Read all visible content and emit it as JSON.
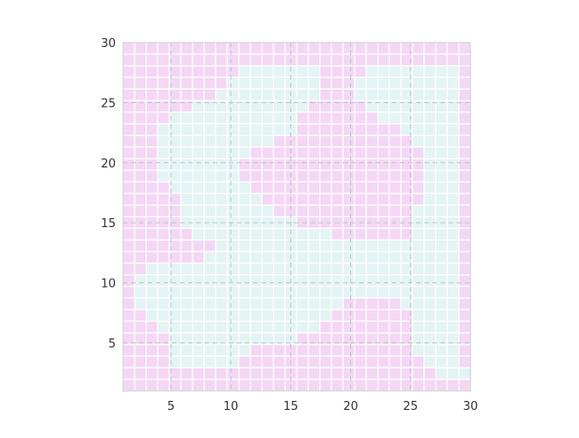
{
  "chart_data": {
    "type": "heatmap",
    "title": "",
    "xlabel": "",
    "ylabel": "",
    "xlim": [
      1,
      30
    ],
    "ylim": [
      1,
      30
    ],
    "xticks": [
      5,
      10,
      15,
      20,
      25,
      30
    ],
    "yticks": [
      5,
      10,
      15,
      20,
      25,
      30
    ],
    "grid": true,
    "colors": {
      "value_0": "#e4f3f3",
      "value_1": "#f4d7f4",
      "cell_border": "#ffffff",
      "grid_line": "#b8c8c8",
      "frame": "#cccccc"
    },
    "value_encoding": "rows listed from y=30 (top) down to y=1 (bottom); '0' = light blue, '1' = pink; each string covers x=1..30",
    "cells": [
      "111111111111111111111111111111",
      "111111111111111111111111111111",
      "111111111100000001111000000001",
      "111111111000000001110000000001",
      "111111110000000001110000000001",
      "111111000000000011111000000001",
      "111100000000000111111100000001",
      "111000000000000111111111000001",
      "111000000000011111111111100001",
      "111000000001111111111111110001",
      "111000000011111111111111110001",
      "111000000011111111111111110001",
      "111100000001111111111111110001",
      "111110000000111111111111110001",
      "111110000000011111111111100001",
      "111110000000000111111111100001",
      "111111000000000000111111100001",
      "111111110000000000000000000001",
      "111111100000000000000000000001",
      "110000000000000000000000000001",
      "100000000000000000000000000001",
      "100000000000000000000000000001",
      "100000000000000000011111000001",
      "110000000000000000111111100001",
      "111000000000000001111111100001",
      "111100000000000111111111100001",
      "111100000001111111111111100001",
      "111100000011111111111111110001",
      "111111111111111111111111111000",
      "111111111111111111111111111111"
    ]
  }
}
